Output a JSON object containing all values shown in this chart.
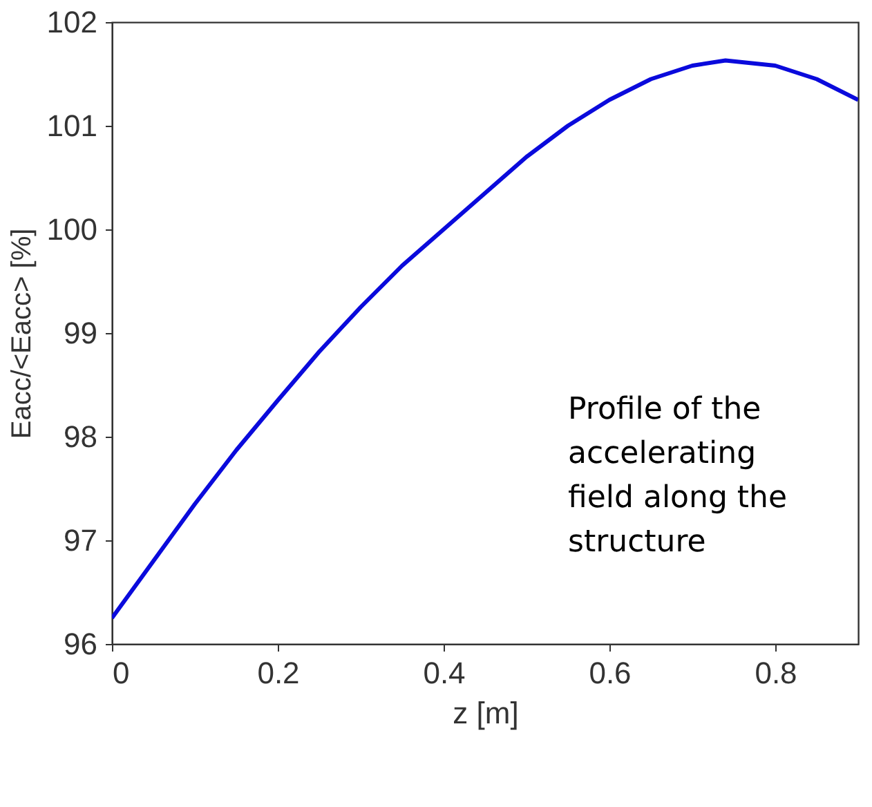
{
  "chart_data": {
    "type": "line",
    "xlabel": "z [m]",
    "ylabel": "Eacc/<Eacc> [%]",
    "annotations": [
      "Profile of the\naccelerating\nfield along the\nstructure"
    ],
    "x": [
      0,
      0.05,
      0.1,
      0.15,
      0.2,
      0.25,
      0.3,
      0.35,
      0.4,
      0.45,
      0.5,
      0.55,
      0.6,
      0.65,
      0.7,
      0.74,
      0.8,
      0.85,
      0.9
    ],
    "series": [
      {
        "color": "#0a0adc",
        "values": [
          96.25,
          96.8,
          97.35,
          97.87,
          98.35,
          98.82,
          99.25,
          99.65,
          100.0,
          100.35,
          100.7,
          101.0,
          101.25,
          101.45,
          101.58,
          101.63,
          101.58,
          101.45,
          101.25
        ]
      }
    ],
    "xlim": [
      0,
      0.9
    ],
    "xticks": [
      0,
      0.2,
      0.4,
      0.6,
      0.8
    ],
    "ylim": [
      96,
      102
    ],
    "yticks": [
      96,
      97,
      98,
      99,
      100,
      101,
      102
    ],
    "grid": false,
    "marker": "none",
    "line_style": "solid"
  }
}
